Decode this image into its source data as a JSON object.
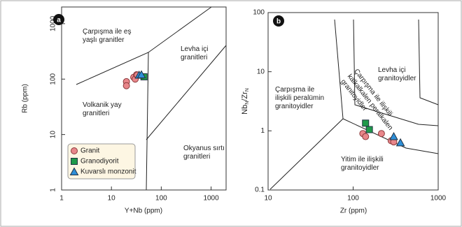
{
  "chart_data": [
    {
      "type": "scatter",
      "panel": "a",
      "xlabel": "Y+Nb (ppm)",
      "ylabel": "Rb (ppm)",
      "xscale": "log",
      "yscale": "log",
      "xlim": [
        1,
        2000
      ],
      "ylim": [
        1,
        2000
      ],
      "xticks": [
        1,
        10,
        100,
        1000
      ],
      "yticks": [
        1,
        10,
        100,
        1000
      ],
      "legend": "lower left",
      "annotations": [
        [
          "Çarpışma ile eş",
          "yaşlı granitler"
        ],
        [
          "Levha içi",
          "granitleri"
        ],
        [
          "Volkanik yay",
          "granitleri"
        ],
        [
          "Okyanus sırtı",
          "granitleri"
        ]
      ],
      "series": [
        {
          "name": "Granit",
          "color": "#e8868a",
          "marker": "circle",
          "x": [
            20,
            20,
            28,
            30,
            32,
            33
          ],
          "y": [
            90,
            76,
            108,
            100,
            120,
            118
          ]
        },
        {
          "name": "Granodiyorit",
          "color": "#1f9a4a",
          "marker": "square",
          "x": [
            45
          ],
          "y": [
            110
          ]
        },
        {
          "name": "Kuvarslı monzonit",
          "color": "#2e8fd8",
          "marker": "triangle",
          "x": [
            36,
            40
          ],
          "y": [
            118,
            120
          ]
        }
      ]
    },
    {
      "type": "scatter",
      "panel": "b",
      "xlabel": "Zr (ppm)",
      "ylabel": [
        "Nb",
        "N",
        "/Zr",
        "N"
      ],
      "xscale": "log",
      "yscale": "log",
      "xlim": [
        10,
        1000
      ],
      "ylim": [
        0.1,
        100
      ],
      "xticks": [
        10,
        100,
        1000
      ],
      "yticks": [
        0.1,
        1,
        10,
        100
      ],
      "legend": false,
      "annotations": [
        [
          "Çarpışma ile",
          "ilişkili peralümin",
          "granitoyidler"
        ],
        [
          "Levha içi",
          "granitoyidler"
        ],
        [
          "Yitim ile ilişkili",
          "granitoyidler"
        ],
        [
          "Çarpışma ile ilişkili",
          "kalkalkalen peralkalen",
          "granitoyidler"
        ]
      ],
      "series": [
        {
          "name": "Granit",
          "color": "#e8868a",
          "marker": "circle",
          "x": [
            130,
            140,
            215,
            280,
            300
          ],
          "y": [
            0.9,
            0.8,
            0.9,
            0.68,
            0.65
          ]
        },
        {
          "name": "Granodiyorit",
          "color": "#1f9a4a",
          "marker": "square",
          "x": [
            140,
            155
          ],
          "y": [
            1.35,
            1.05
          ]
        },
        {
          "name": "Kuvarslı monzonit",
          "color": "#2e8fd8",
          "marker": "triangle",
          "x": [
            300,
            360
          ],
          "y": [
            0.8,
            0.63
          ]
        }
      ]
    }
  ]
}
